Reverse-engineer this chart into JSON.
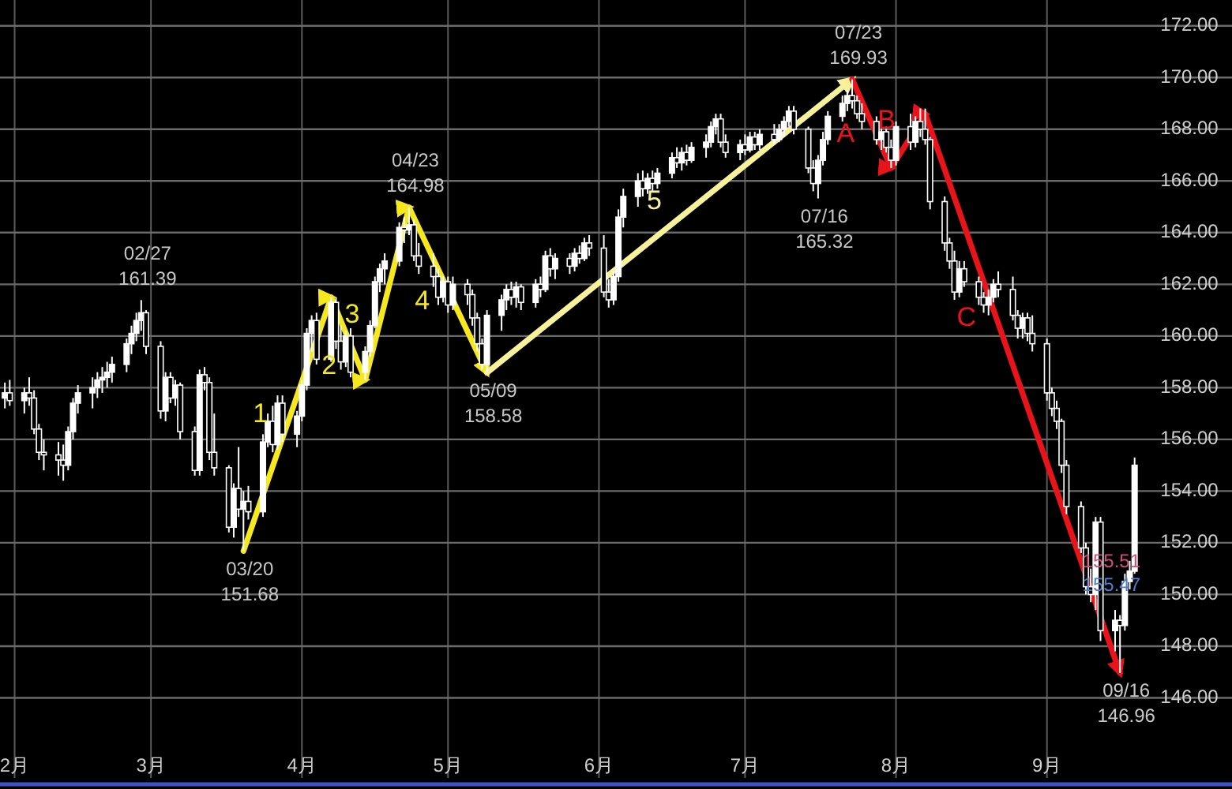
{
  "chart_data": {
    "type": "candlestick",
    "color": "#ffffff",
    "grid": true,
    "xlim": [
      "--01-29",
      "--10-09"
    ],
    "ylim": [
      142.9,
      173
    ],
    "xticks": [
      {
        "value": "--02-01",
        "label": "2月"
      },
      {
        "value": "--03-01",
        "label": "3月"
      },
      {
        "value": "--04-01",
        "label": "4月"
      },
      {
        "value": "--05-01",
        "label": "5月"
      },
      {
        "value": "--06-01",
        "label": "6月"
      },
      {
        "value": "--07-01",
        "label": "7月"
      },
      {
        "value": "--08-01",
        "label": "8月"
      },
      {
        "value": "--09-01",
        "label": "9月"
      }
    ],
    "yticks": [
      {
        "value": 146,
        "label": "146.00"
      },
      {
        "value": 148,
        "label": "148.00"
      },
      {
        "value": 150,
        "label": "150.00"
      },
      {
        "value": 152,
        "label": "152.00"
      },
      {
        "value": 154,
        "label": "154.00"
      },
      {
        "value": 156,
        "label": "156.00"
      },
      {
        "value": 158,
        "label": "158.00"
      },
      {
        "value": 160,
        "label": "160.00"
      },
      {
        "value": 162,
        "label": "162.00"
      },
      {
        "value": 164,
        "label": "164.00"
      },
      {
        "value": 166,
        "label": "166.00"
      },
      {
        "value": 168,
        "label": "168.00"
      },
      {
        "value": 170,
        "label": "170.00"
      },
      {
        "value": 172,
        "label": "172.00"
      }
    ],
    "x": [
      "--01-30",
      "--01-31",
      "--02-03",
      "--02-04",
      "--02-05",
      "--02-06",
      "--02-07",
      "--02-10",
      "--02-11",
      "--02-12",
      "--02-13",
      "--02-14",
      "--02-17",
      "--02-18",
      "--02-19",
      "--02-20",
      "--02-21",
      "--02-24",
      "--02-25",
      "--02-26",
      "--02-27",
      "--02-28",
      "--03-03",
      "--03-04",
      "--03-05",
      "--03-06",
      "--03-07",
      "--03-10",
      "--03-11",
      "--03-12",
      "--03-13",
      "--03-14",
      "--03-17",
      "--03-18",
      "--03-19",
      "--03-20",
      "--03-21",
      "--03-24",
      "--03-25",
      "--03-26",
      "--03-27",
      "--03-28",
      "--03-31",
      "--04-01",
      "--04-02",
      "--04-03",
      "--04-04",
      "--04-07",
      "--04-08",
      "--04-09",
      "--04-10",
      "--04-11",
      "--04-14",
      "--04-15",
      "--04-16",
      "--04-17",
      "--04-18",
      "--04-21",
      "--04-22",
      "--04-23",
      "--04-24",
      "--04-25",
      "--04-28",
      "--04-29",
      "--04-30",
      "--05-01",
      "--05-02",
      "--05-05",
      "--05-06",
      "--05-07",
      "--05-08",
      "--05-09",
      "--05-12",
      "--05-13",
      "--05-14",
      "--05-15",
      "--05-16",
      "--05-19",
      "--05-20",
      "--05-21",
      "--05-22",
      "--05-23",
      "--05-26",
      "--05-27",
      "--05-28",
      "--05-29",
      "--05-30",
      "--06-02",
      "--06-03",
      "--06-04",
      "--06-05",
      "--06-06",
      "--06-09",
      "--06-10",
      "--06-11",
      "--06-12",
      "--06-13",
      "--06-16",
      "--06-17",
      "--06-18",
      "--06-19",
      "--06-20",
      "--06-23",
      "--06-24",
      "--06-25",
      "--06-26",
      "--06-27",
      "--06-30",
      "--07-01",
      "--07-02",
      "--07-03",
      "--07-04",
      "--07-07",
      "--07-08",
      "--07-09",
      "--07-10",
      "--07-11",
      "--07-14",
      "--07-15",
      "--07-16",
      "--07-17",
      "--07-18",
      "--07-21",
      "--07-22",
      "--07-23",
      "--07-24",
      "--07-25",
      "--07-28",
      "--07-29",
      "--07-30",
      "--07-31",
      "--08-01",
      "--08-04",
      "--08-05",
      "--08-06",
      "--08-07",
      "--08-08",
      "--08-11",
      "--08-12",
      "--08-13",
      "--08-14",
      "--08-15",
      "--08-18",
      "--08-19",
      "--08-20",
      "--08-21",
      "--08-22",
      "--08-25",
      "--08-26",
      "--08-27",
      "--08-28",
      "--08-29",
      "--09-01",
      "--09-02",
      "--09-03",
      "--09-04",
      "--09-05",
      "--09-08",
      "--09-09",
      "--09-10",
      "--09-11",
      "--09-12",
      "--09-15",
      "--09-16",
      "--09-17",
      "--09-18",
      "--09-19"
    ],
    "ohlc": [
      [
        157.6,
        158.2,
        157.2,
        157.8
      ],
      [
        157.8,
        158.3,
        157.3,
        157.5
      ],
      [
        157.5,
        158.0,
        157.0,
        157.8
      ],
      [
        157.8,
        158.4,
        157.3,
        157.6
      ],
      [
        157.6,
        157.9,
        156.2,
        156.4
      ],
      [
        156.4,
        156.6,
        155.2,
        155.5
      ],
      [
        155.5,
        156.0,
        154.8,
        155.4
      ],
      [
        155.4,
        155.9,
        154.6,
        155.2
      ],
      [
        155.2,
        155.8,
        154.4,
        155.0
      ],
      [
        155.0,
        156.5,
        154.8,
        156.3
      ],
      [
        156.3,
        157.6,
        156.0,
        157.4
      ],
      [
        157.4,
        158.1,
        157.0,
        157.8
      ],
      [
        157.8,
        158.4,
        157.2,
        158.0
      ],
      [
        158.0,
        158.6,
        157.6,
        158.3
      ],
      [
        158.3,
        158.8,
        157.8,
        158.4
      ],
      [
        158.4,
        159.0,
        158.0,
        158.6
      ],
      [
        158.6,
        159.2,
        158.2,
        158.9
      ],
      [
        158.9,
        159.9,
        158.6,
        159.7
      ],
      [
        159.7,
        160.4,
        159.3,
        160.1
      ],
      [
        160.1,
        160.9,
        159.8,
        160.6
      ],
      [
        160.6,
        161.39,
        160.2,
        160.9
      ],
      [
        160.9,
        161.0,
        159.3,
        159.6
      ],
      [
        159.6,
        159.8,
        156.8,
        157.1
      ],
      [
        157.1,
        158.6,
        156.7,
        158.4
      ],
      [
        158.4,
        158.6,
        157.4,
        157.6
      ],
      [
        157.6,
        158.3,
        157.3,
        158.1
      ],
      [
        158.1,
        158.2,
        156.0,
        156.3
      ],
      [
        156.3,
        156.5,
        154.6,
        154.8
      ],
      [
        154.8,
        158.7,
        154.6,
        158.5
      ],
      [
        158.5,
        158.8,
        157.9,
        158.2
      ],
      [
        158.2,
        158.4,
        155.2,
        155.5
      ],
      [
        155.5,
        157.0,
        154.6,
        154.9
      ],
      [
        154.9,
        155.0,
        152.4,
        152.6
      ],
      [
        152.6,
        154.3,
        152.2,
        154.1
      ],
      [
        154.1,
        155.7,
        153.0,
        153.3
      ],
      [
        153.3,
        154.0,
        151.68,
        153.6
      ],
      [
        153.6,
        154.2,
        152.9,
        153.2
      ],
      [
        153.2,
        156.2,
        153.0,
        155.9
      ],
      [
        155.9,
        157.0,
        155.7,
        156.7
      ],
      [
        156.7,
        157.3,
        155.5,
        155.8
      ],
      [
        155.8,
        157.7,
        155.6,
        157.4
      ],
      [
        157.4,
        157.7,
        155.9,
        156.2
      ],
      [
        156.2,
        157.1,
        155.7,
        156.9
      ],
      [
        156.9,
        158.3,
        156.7,
        158.1
      ],
      [
        158.1,
        160.3,
        157.9,
        160.1
      ],
      [
        160.1,
        160.8,
        159.4,
        160.6
      ],
      [
        160.6,
        160.9,
        158.9,
        159.1
      ],
      [
        159.1,
        161.5,
        159.0,
        161.3
      ],
      [
        161.3,
        161.5,
        159.5,
        159.8
      ],
      [
        159.8,
        160.4,
        158.7,
        159.0
      ],
      [
        159.0,
        160.2,
        158.8,
        160.0
      ],
      [
        160.0,
        160.3,
        158.4,
        158.6
      ],
      [
        158.6,
        159.6,
        158.3,
        159.4
      ],
      [
        159.4,
        160.6,
        159.2,
        160.4
      ],
      [
        160.4,
        162.3,
        160.3,
        162.1
      ],
      [
        162.1,
        162.8,
        161.7,
        162.6
      ],
      [
        162.6,
        163.2,
        162.0,
        162.9
      ],
      [
        162.9,
        164.4,
        162.7,
        164.2
      ],
      [
        164.2,
        164.6,
        163.6,
        164.1
      ],
      [
        164.1,
        164.98,
        163.9,
        164.3
      ],
      [
        164.3,
        164.5,
        162.9,
        163.1
      ],
      [
        163.1,
        163.6,
        162.4,
        162.7
      ],
      [
        162.7,
        163.2,
        161.9,
        162.3
      ],
      [
        162.3,
        162.6,
        161.2,
        161.5
      ],
      [
        161.5,
        162.3,
        161.3,
        162.1
      ],
      [
        162.1,
        162.3,
        160.9,
        161.2
      ],
      [
        161.2,
        162.3,
        161.0,
        162.0
      ],
      [
        162.0,
        162.2,
        161.2,
        161.6
      ],
      [
        161.6,
        161.8,
        160.4,
        160.7
      ],
      [
        160.7,
        160.9,
        159.4,
        159.7
      ],
      [
        159.7,
        159.9,
        158.7,
        158.9
      ],
      [
        158.9,
        161.0,
        158.58,
        160.8
      ],
      [
        160.8,
        161.6,
        160.2,
        161.4
      ],
      [
        161.4,
        162.0,
        161.0,
        161.8
      ],
      [
        161.8,
        162.1,
        161.2,
        161.5
      ],
      [
        161.5,
        162.1,
        161.1,
        161.9
      ],
      [
        161.9,
        162.0,
        161.0,
        161.3
      ],
      [
        161.3,
        162.2,
        161.1,
        162.0
      ],
      [
        162.0,
        162.3,
        161.5,
        161.8
      ],
      [
        161.8,
        163.3,
        161.7,
        163.1
      ],
      [
        163.1,
        163.4,
        162.3,
        162.6
      ],
      [
        162.6,
        163.2,
        162.2,
        163.0
      ],
      [
        163.0,
        163.2,
        162.4,
        162.7
      ],
      [
        162.7,
        163.4,
        162.5,
        163.2
      ],
      [
        163.2,
        163.5,
        162.8,
        163.0
      ],
      [
        163.0,
        163.8,
        162.9,
        163.6
      ],
      [
        163.6,
        163.9,
        163.1,
        163.4
      ],
      [
        163.4,
        163.9,
        161.5,
        161.7
      ],
      [
        161.7,
        162.2,
        161.1,
        161.4
      ],
      [
        161.4,
        162.5,
        161.2,
        162.3
      ],
      [
        162.3,
        164.9,
        162.1,
        164.6
      ],
      [
        164.6,
        165.7,
        164.2,
        165.4
      ],
      [
        165.4,
        166.3,
        165.0,
        166.0
      ],
      [
        166.0,
        166.4,
        165.4,
        165.7
      ],
      [
        165.7,
        166.3,
        165.5,
        166.1
      ],
      [
        166.1,
        166.4,
        165.6,
        165.9
      ],
      [
        165.9,
        166.5,
        165.7,
        166.3
      ],
      [
        166.3,
        167.1,
        166.1,
        166.9
      ],
      [
        166.9,
        167.3,
        166.5,
        166.7
      ],
      [
        166.7,
        167.3,
        166.4,
        167.1
      ],
      [
        167.1,
        167.4,
        166.6,
        166.8
      ],
      [
        166.8,
        167.5,
        166.7,
        167.3
      ],
      [
        167.3,
        167.8,
        166.9,
        167.5
      ],
      [
        167.5,
        168.3,
        167.3,
        168.1
      ],
      [
        168.1,
        168.6,
        167.8,
        168.4
      ],
      [
        168.4,
        168.6,
        167.3,
        167.5
      ],
      [
        167.5,
        167.8,
        166.9,
        167.1
      ],
      [
        167.1,
        167.6,
        166.8,
        167.4
      ],
      [
        167.4,
        167.8,
        167.0,
        167.2
      ],
      [
        167.2,
        167.9,
        167.1,
        167.7
      ],
      [
        167.7,
        167.9,
        167.2,
        167.4
      ],
      [
        167.4,
        168.0,
        167.2,
        167.8
      ],
      [
        167.8,
        168.2,
        167.4,
        167.6
      ],
      [
        167.6,
        168.2,
        167.5,
        168.0
      ],
      [
        168.0,
        168.5,
        167.7,
        168.3
      ],
      [
        168.3,
        168.9,
        168.1,
        168.7
      ],
      [
        168.7,
        168.9,
        167.8,
        168.0
      ],
      [
        168.0,
        168.1,
        166.3,
        166.5
      ],
      [
        166.5,
        166.8,
        165.6,
        165.9
      ],
      [
        165.9,
        167.0,
        165.32,
        166.8
      ],
      [
        166.8,
        167.9,
        166.6,
        167.6
      ],
      [
        167.6,
        168.7,
        167.4,
        168.5
      ],
      [
        168.5,
        169.3,
        168.3,
        169.0
      ],
      [
        169.0,
        169.5,
        168.7,
        169.3
      ],
      [
        169.3,
        169.93,
        168.8,
        169.1
      ],
      [
        169.1,
        169.3,
        168.4,
        168.6
      ],
      [
        168.6,
        169.0,
        168.0,
        168.3
      ],
      [
        168.3,
        168.5,
        167.4,
        167.6
      ],
      [
        167.6,
        168.1,
        167.2,
        167.9
      ],
      [
        167.9,
        168.1,
        167.1,
        167.3
      ],
      [
        167.3,
        167.6,
        166.5,
        166.8
      ],
      [
        166.8,
        168.3,
        166.6,
        168.1
      ],
      [
        168.1,
        168.6,
        167.2,
        167.5
      ],
      [
        167.5,
        168.5,
        167.3,
        168.3
      ],
      [
        168.3,
        168.8,
        167.7,
        168.0
      ],
      [
        168.0,
        168.8,
        167.4,
        167.6
      ],
      [
        167.6,
        167.7,
        164.9,
        165.2
      ],
      [
        165.2,
        165.4,
        163.3,
        163.6
      ],
      [
        163.6,
        163.8,
        162.6,
        162.9
      ],
      [
        162.9,
        163.3,
        161.4,
        161.7
      ],
      [
        161.7,
        162.9,
        161.5,
        162.6
      ],
      [
        162.6,
        162.9,
        161.9,
        162.1
      ],
      [
        162.1,
        162.3,
        161.2,
        161.5
      ],
      [
        161.5,
        161.7,
        160.9,
        161.2
      ],
      [
        161.2,
        161.8,
        160.8,
        161.5
      ],
      [
        161.5,
        162.2,
        161.3,
        162.0
      ],
      [
        162.0,
        162.5,
        161.5,
        161.8
      ],
      [
        161.8,
        162.3,
        160.6,
        160.8
      ],
      [
        160.8,
        161.0,
        159.9,
        160.3
      ],
      [
        160.3,
        160.9,
        159.9,
        160.7
      ],
      [
        160.7,
        160.9,
        159.8,
        160.1
      ],
      [
        160.1,
        160.8,
        159.4,
        159.7
      ],
      [
        159.7,
        159.9,
        157.5,
        157.8
      ],
      [
        157.8,
        158.0,
        156.9,
        157.2
      ],
      [
        157.2,
        157.5,
        156.4,
        156.7
      ],
      [
        156.7,
        156.8,
        154.7,
        155.0
      ],
      [
        155.0,
        155.2,
        153.1,
        153.4
      ],
      [
        153.4,
        153.6,
        151.6,
        151.8
      ],
      [
        151.8,
        152.0,
        150.0,
        150.3
      ],
      [
        150.3,
        151.0,
        149.7,
        150.0
      ],
      [
        150.0,
        153.0,
        149.4,
        152.8
      ],
      [
        152.8,
        153.0,
        148.2,
        148.6
      ],
      [
        148.6,
        149.4,
        147.8,
        149.0
      ],
      [
        149.0,
        149.2,
        146.96,
        148.8
      ],
      [
        148.8,
        150.8,
        148.6,
        150.5
      ],
      [
        150.5,
        151.3,
        150.2,
        150.9
      ],
      [
        150.9,
        155.3,
        150.8,
        155.0
      ]
    ],
    "series": [
      {
        "type": "line",
        "color": "#f5e81c",
        "x": [
          "--03-20",
          "--04-07",
          "--04-14",
          "--04-23",
          "--05-09"
        ],
        "values": [
          151.68,
          161.5,
          158.3,
          164.98,
          158.58
        ]
      },
      {
        "type": "line",
        "color": "#f7f29a",
        "x": [
          "--05-09",
          "--07-23"
        ],
        "values": [
          158.58,
          169.93
        ]
      },
      {
        "type": "line",
        "color": "#e8141a",
        "x": [
          "--07-23",
          "--07-31",
          "--08-07",
          "--09-16"
        ],
        "values": [
          169.93,
          166.5,
          168.6,
          146.96
        ]
      }
    ],
    "annotations": [
      {
        "text": "02/27",
        "x": "--02-27",
        "y": 161.39
      },
      {
        "text": "161.39",
        "x": "--02-27",
        "y": 161.39
      },
      {
        "text": "03/20",
        "x": "--03-20",
        "y": 151.68
      },
      {
        "text": "151.68",
        "x": "--03-20",
        "y": 151.68
      },
      {
        "text": "04/23",
        "x": "--04-23",
        "y": 164.98
      },
      {
        "text": "164.98",
        "x": "--04-23",
        "y": 164.98
      },
      {
        "text": "05/09",
        "x": "--05-09",
        "y": 158.58
      },
      {
        "text": "158.58",
        "x": "--05-09",
        "y": 158.58
      },
      {
        "text": "07/16",
        "x": "--07-16",
        "y": 165.32
      },
      {
        "text": "165.32",
        "x": "--07-16",
        "y": 165.32
      },
      {
        "text": "07/23",
        "x": "--07-23",
        "y": 169.93
      },
      {
        "text": "169.93",
        "x": "--07-23",
        "y": 169.93
      },
      {
        "text": "09/16",
        "x": "--09-16",
        "y": 146.96
      },
      {
        "text": "146.96",
        "x": "--09-16",
        "y": 146.96
      },
      {
        "text": "1",
        "x": "--03-29",
        "y": 156.59
      },
      {
        "text": "2",
        "x": "--04-12",
        "y": 159.21
      },
      {
        "text": "3",
        "x": "--04-17",
        "y": 160.53
      },
      {
        "text": "4",
        "x": "--05-01",
        "y": 161.78
      },
      {
        "text": "5",
        "x": "--06-16",
        "y": 164.33
      },
      {
        "text": "A",
        "x": "--07-27",
        "y": 168.22
      },
      {
        "text": "B",
        "x": "--08-04",
        "y": 167.7
      },
      {
        "text": "C",
        "x": "--08-21",
        "y": 161.03
      },
      "155.51",
      "155.47"
    ]
  }
}
